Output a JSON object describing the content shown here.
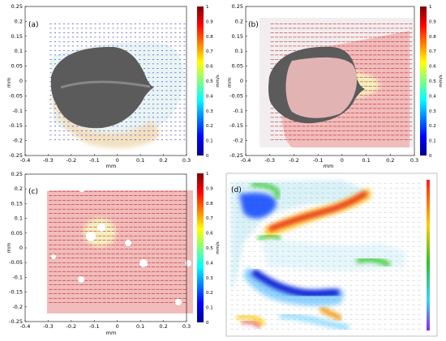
{
  "chart_data": [
    {
      "type": "quiver",
      "panel_label": "(a)",
      "xlabel": "mm",
      "ylabel": "mm",
      "xlim": [
        -0.4,
        0.3
      ],
      "ylim": [
        -0.25,
        0.25
      ],
      "xticks": [
        "-0.4",
        "-0.3",
        "-0.2",
        "-0.1",
        "0",
        "0.1",
        "0.2",
        "0.3"
      ],
      "yticks": [
        "0.25",
        "0.2",
        "0.15",
        "0.1",
        "0.05",
        "0",
        "-0.05",
        "-0.1",
        "-0.15",
        "-0.2",
        "-0.25"
      ],
      "colorbar": {
        "min": 0,
        "max": 1,
        "ticks": [
          "1",
          "0.9",
          "0.8",
          "0.7",
          "0.6",
          "0.5",
          "0.4",
          "0.3",
          "0.2",
          "0.1",
          "0"
        ],
        "label": "mm/s"
      },
      "field": {
        "x_range": [
          -0.3,
          0.3
        ],
        "y_range": [
          -0.2,
          0.2
        ],
        "dominant_speed_mm_s": 0.05,
        "peak_speed_mm_s": 0.25
      }
    },
    {
      "type": "quiver",
      "panel_label": "(b)",
      "xlabel": "mm",
      "ylabel": "mm",
      "xlim": [
        -0.4,
        0.3
      ],
      "ylim": [
        -0.25,
        0.25
      ],
      "xticks": [
        "-0.4",
        "-0.3",
        "-0.2",
        "-0.1",
        "0",
        "0.1",
        "0.2",
        "0.3"
      ],
      "yticks": [
        "0.25",
        "0.2",
        "0.15",
        "0.1",
        "0.05",
        "0",
        "-0.05",
        "-0.1",
        "-0.15",
        "-0.2",
        "-0.25"
      ],
      "colorbar": {
        "min": 0,
        "max": 1,
        "ticks": [
          "1",
          "0.9",
          "0.8",
          "0.7",
          "0.6",
          "0.5",
          "0.4",
          "0.3",
          "0.2",
          "0.1",
          "0"
        ],
        "label": "mm/s"
      },
      "field": {
        "x_range": [
          -0.3,
          0.3
        ],
        "y_range": [
          -0.2,
          0.2
        ],
        "dominant_speed_mm_s": 0.95,
        "low_region_speed_mm_s": 0.35
      }
    },
    {
      "type": "quiver",
      "panel_label": "(c)",
      "xlabel": "mm",
      "ylabel": "mm",
      "xlim": [
        -0.4,
        0.3
      ],
      "ylim": [
        -0.25,
        0.25
      ],
      "xticks": [
        "-0.4",
        "-0.3",
        "-0.2",
        "-0.1",
        "0",
        "0.1",
        "0.2",
        "0.3"
      ],
      "yticks": [
        "0.25",
        "0.2",
        "0.15",
        "0.1",
        "0.05",
        "0",
        "-0.05",
        "-0.1",
        "-0.15",
        "-0.2",
        "-0.25"
      ],
      "colorbar": {
        "min": 0,
        "max": 1,
        "ticks": [
          "1",
          "0.9",
          "0.8",
          "0.7",
          "0.6",
          "0.5",
          "0.4",
          "0.3",
          "0.2",
          "0.1",
          "0"
        ],
        "label": "mm/s"
      },
      "field": {
        "x_range": [
          -0.3,
          0.3
        ],
        "y_range": [
          -0.2,
          0.2
        ],
        "dominant_speed_mm_s": 0.95,
        "low_region_speed_mm_s": 0.4
      }
    },
    {
      "type": "heatmap",
      "panel_label": "(d)",
      "colorbar": {
        "min": 0,
        "max": 1,
        "ticks": []
      },
      "features": [
        {
          "shape": "upper streak",
          "speed": 0.9
        },
        {
          "shape": "lower-left streak",
          "speed": 0.05
        },
        {
          "shape": "lower-right patch",
          "speed": 0.4
        }
      ]
    }
  ]
}
